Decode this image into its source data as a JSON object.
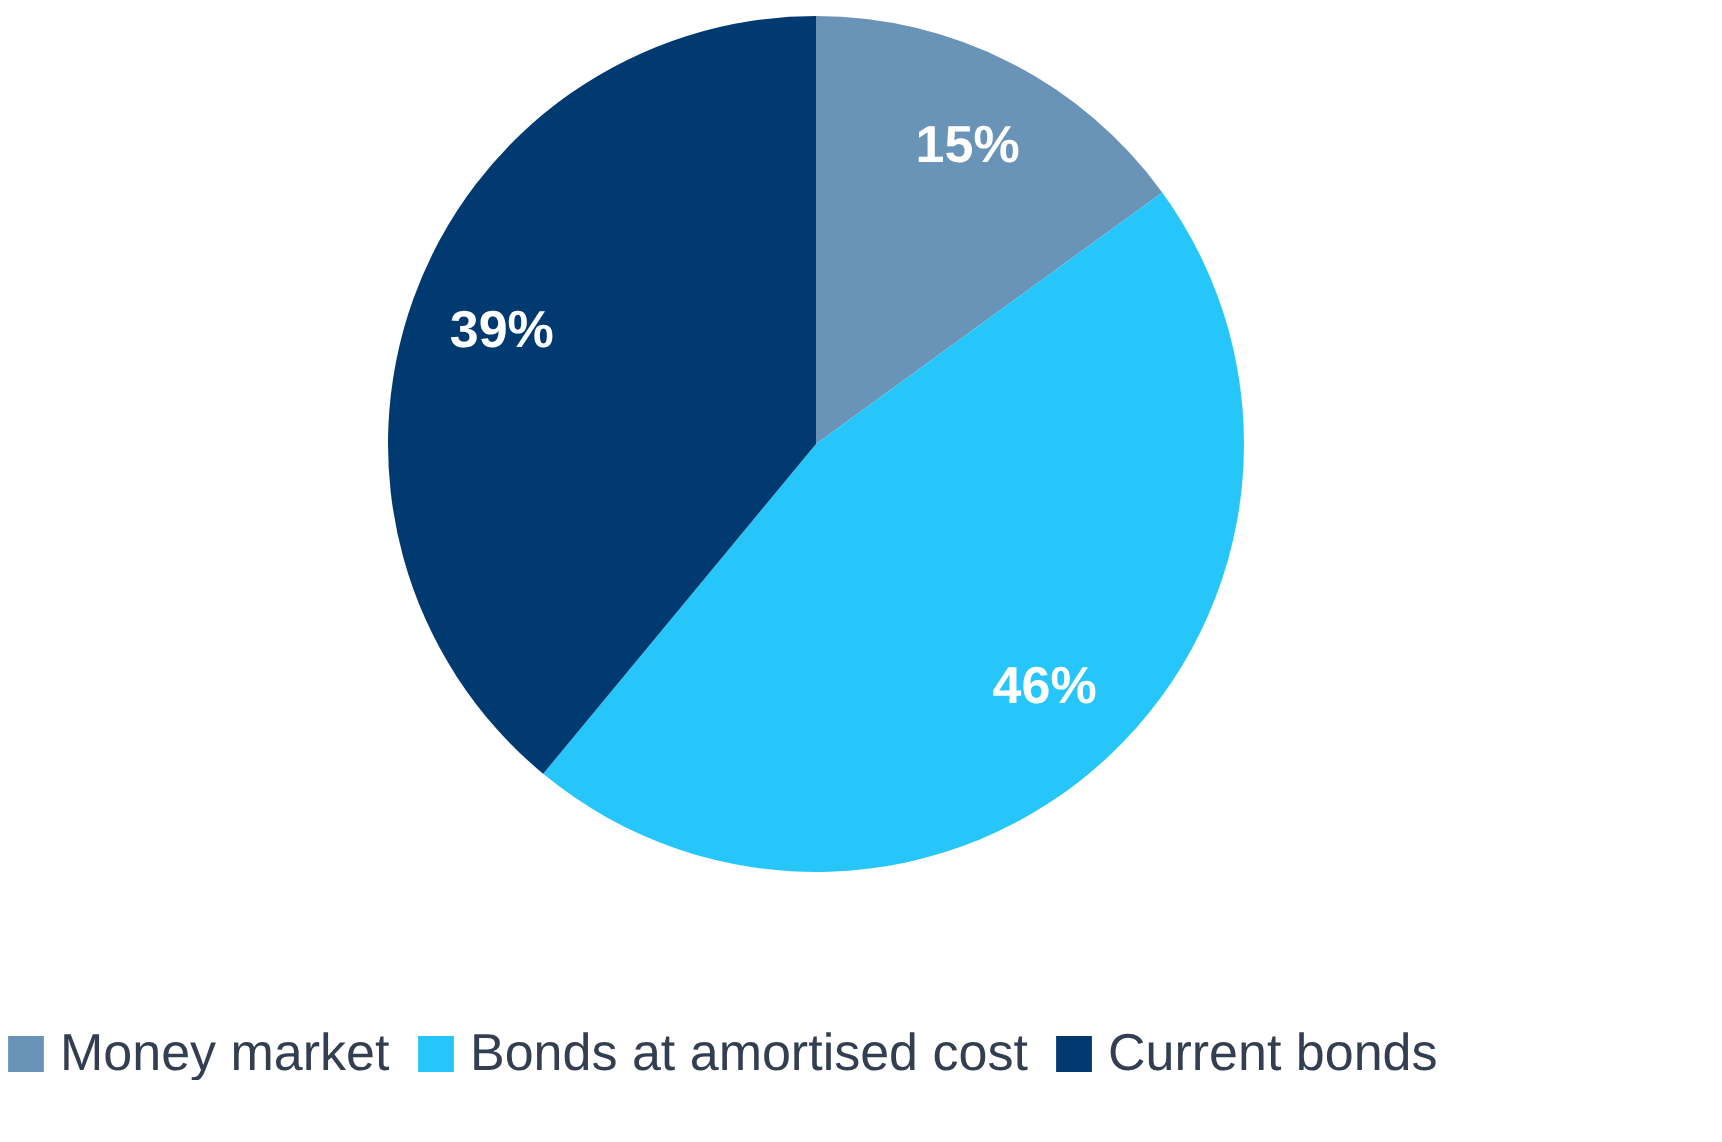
{
  "chart_data": {
    "type": "pie",
    "categories": [
      "Money market",
      "Bonds at amortised cost",
      "Current bonds"
    ],
    "values": [
      15,
      46,
      39
    ],
    "colors": [
      "#6a93b8",
      "#26c6fb",
      "#003a70"
    ],
    "value_labels": [
      "15%",
      "46%",
      "39%"
    ],
    "legend": "bottom"
  }
}
